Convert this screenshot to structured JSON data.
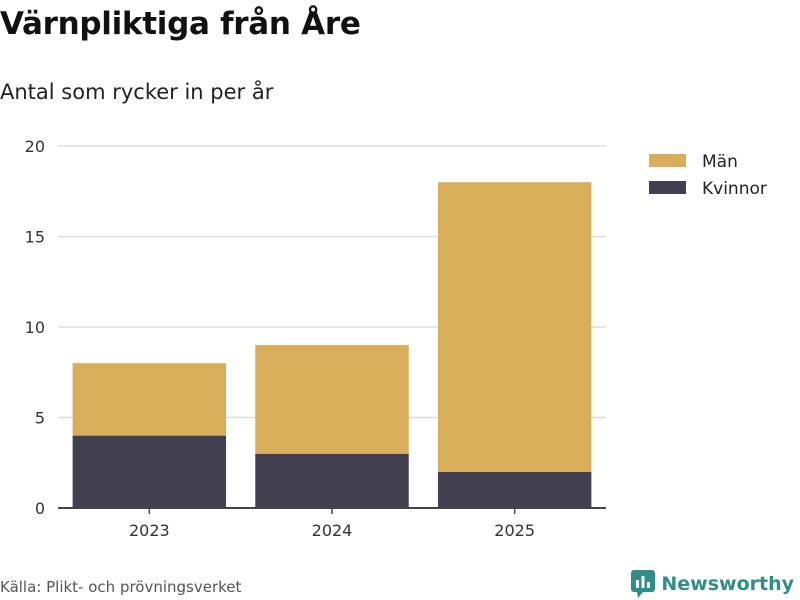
{
  "title": "Värnpliktiga från Åre",
  "subtitle": "Antal som rycker in per år",
  "source": "Källa: Plikt- och prövningsverket",
  "brand": "Newsworthy",
  "colors": {
    "man": "#d9ae5a",
    "kvinnor": "#42404f",
    "grid": "#dddddd",
    "axis": "#444444",
    "brand": "#2f8f86"
  },
  "chart_data": {
    "type": "bar",
    "stacked": true,
    "title": "Värnpliktiga från Åre",
    "subtitle": "Antal som rycker in per år",
    "categories": [
      "2023",
      "2024",
      "2025"
    ],
    "series": [
      {
        "name": "Kvinnor",
        "values": [
          4,
          3,
          2
        ],
        "color": "#42404f"
      },
      {
        "name": "Män",
        "values": [
          4,
          6,
          16
        ],
        "color": "#d9ae5a"
      }
    ],
    "yticks": [
      "0",
      "5",
      "10",
      "15",
      "20"
    ],
    "ylim": [
      0,
      20
    ],
    "xlabel": "",
    "ylabel": "",
    "legend": [
      "Män",
      "Kvinnor"
    ],
    "legend_position": "top-right",
    "grid": true
  }
}
